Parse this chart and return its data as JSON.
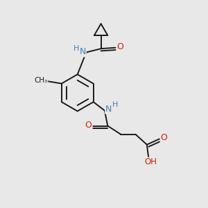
{
  "bg_color": "#e8e8e8",
  "bond_color": "#1a1a1a",
  "atom_colors": {
    "N": "#4a7fa8",
    "O": "#cc2200",
    "H": "#4a7fa8",
    "C": "#1a1a1a"
  },
  "lw": 1.4
}
